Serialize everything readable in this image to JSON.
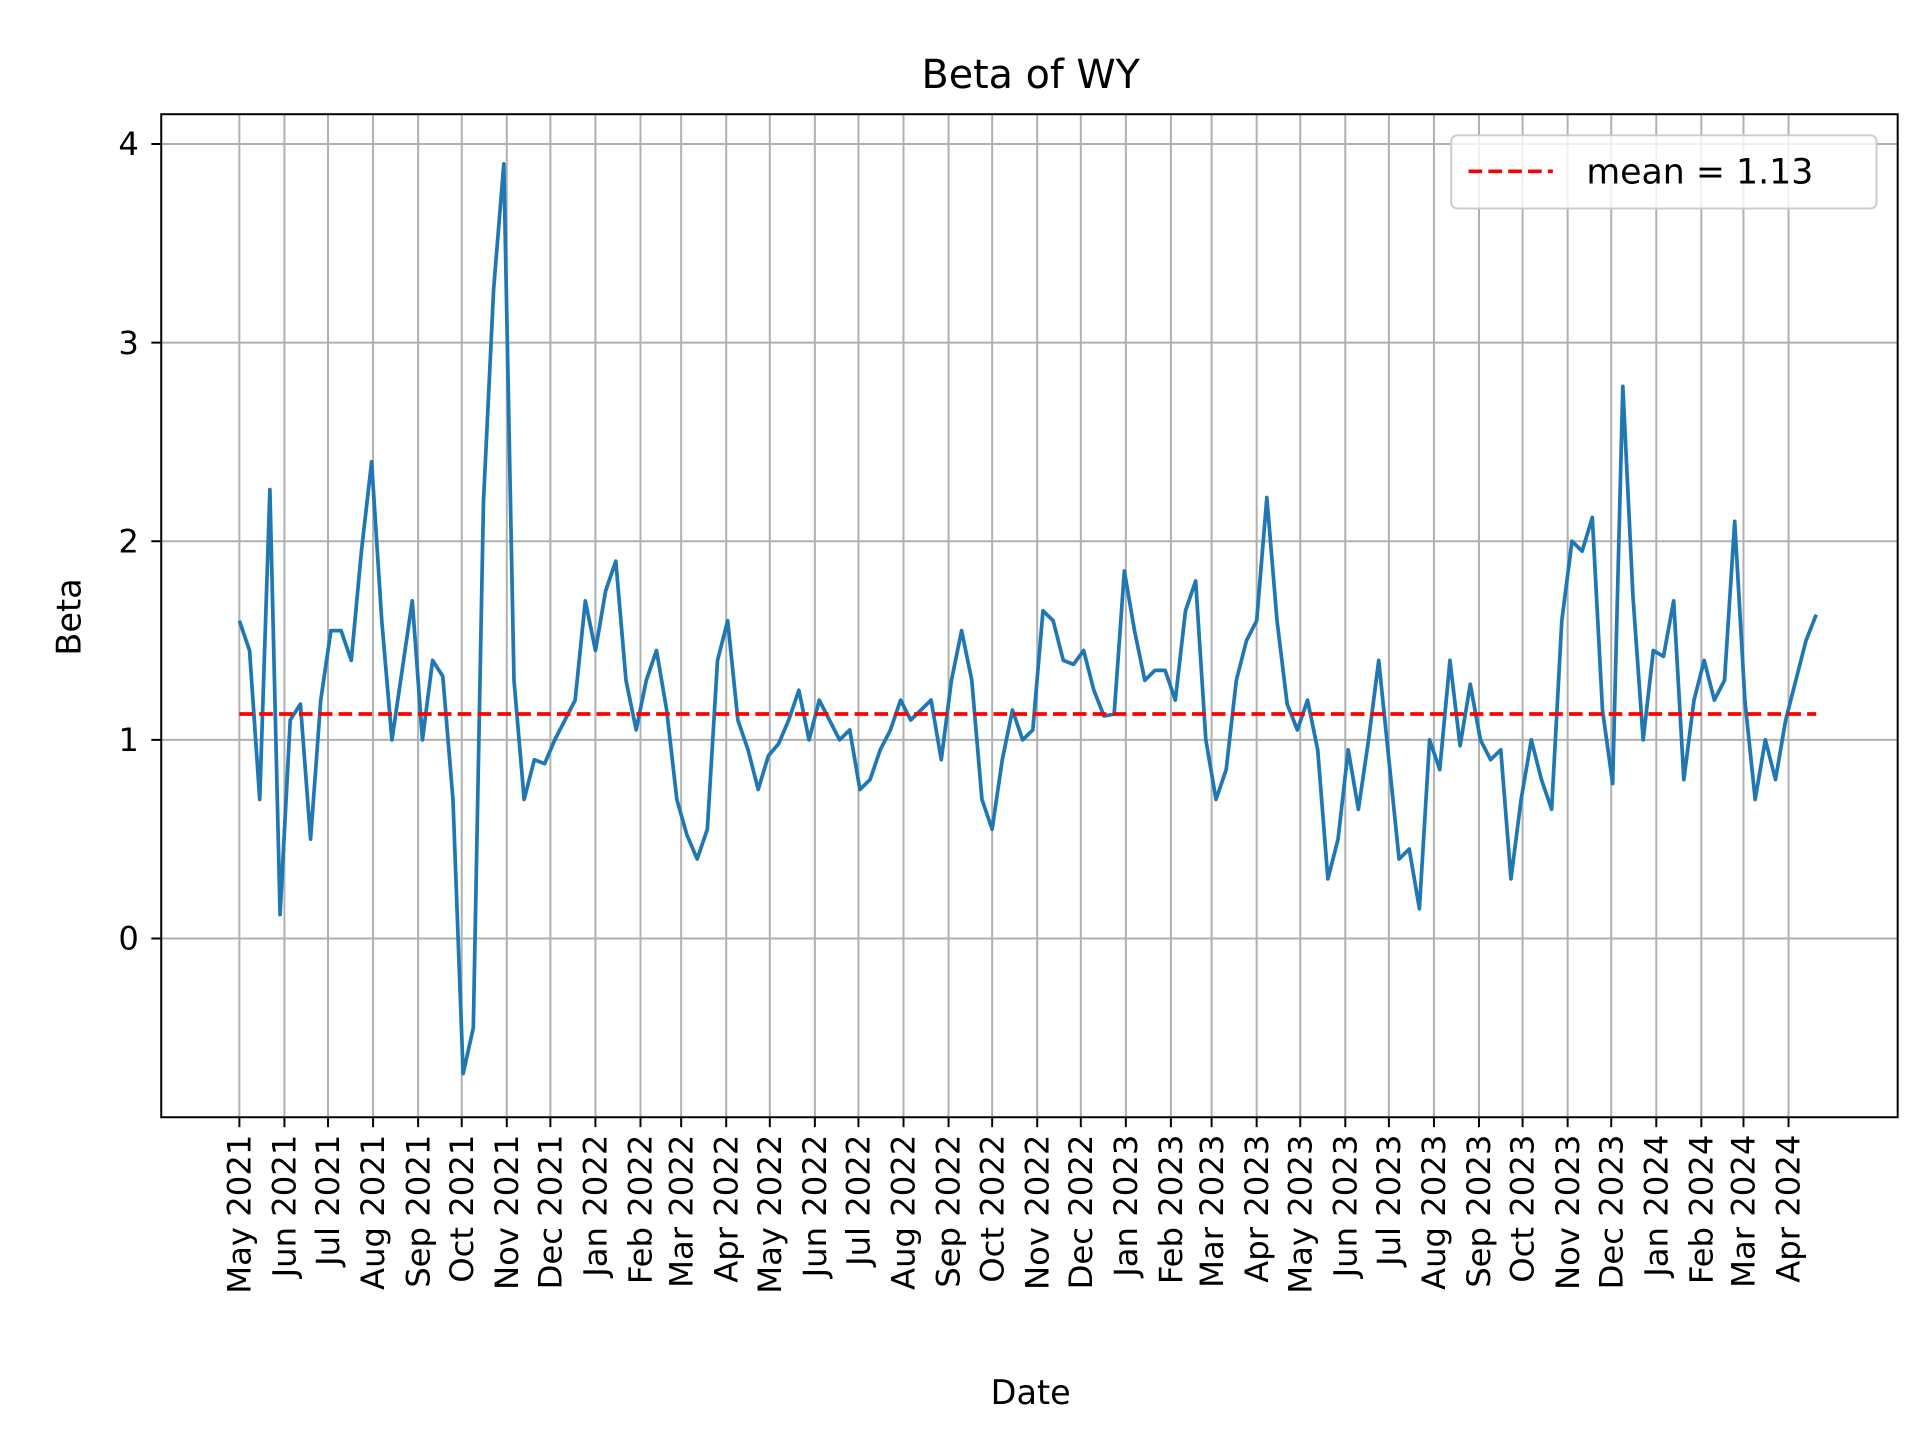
{
  "chart_data": {
    "type": "line",
    "title": "Beta of WY",
    "xlabel": "Date",
    "ylabel": "Beta",
    "ylim": [
      -0.9,
      4.15
    ],
    "yticks": [
      0,
      1,
      2,
      3,
      4
    ],
    "xticks": [
      "May 2021",
      "Jun 2021",
      "Jul 2021",
      "Aug 2021",
      "Sep 2021",
      "Oct 2021",
      "Nov 2021",
      "Dec 2021",
      "Jan 2022",
      "Feb 2022",
      "Mar 2022",
      "Apr 2022",
      "May 2022",
      "Jun 2022",
      "Jul 2022",
      "Aug 2022",
      "Sep 2022",
      "Oct 2022",
      "Nov 2022",
      "Dec 2022",
      "Jan 2023",
      "Feb 2023",
      "Mar 2023",
      "Apr 2023",
      "May 2023",
      "Jun 2023",
      "Jul 2023",
      "Aug 2023",
      "Sep 2023",
      "Oct 2023",
      "Nov 2023",
      "Dec 2023",
      "Jan 2024",
      "Feb 2024",
      "Mar 2024",
      "Apr 2024"
    ],
    "grid": true,
    "legend_position": "top-right",
    "colors": {
      "series": "#1f77b4",
      "mean": "#ff0000",
      "grid": "#b0b0b0"
    },
    "mean": {
      "label": "mean = 1.13",
      "value": 1.13,
      "style": "dashed"
    },
    "x": [
      "2021-05-01",
      "2021-05-08",
      "2021-05-15",
      "2021-05-22",
      "2021-05-29",
      "2021-06-05",
      "2021-06-12",
      "2021-06-19",
      "2021-06-26",
      "2021-07-03",
      "2021-07-10",
      "2021-07-17",
      "2021-07-24",
      "2021-07-31",
      "2021-08-07",
      "2021-08-14",
      "2021-08-21",
      "2021-08-28",
      "2021-09-04",
      "2021-09-11",
      "2021-09-18",
      "2021-09-25",
      "2021-10-02",
      "2021-10-09",
      "2021-10-16",
      "2021-10-23",
      "2021-10-30",
      "2021-11-06",
      "2021-11-13",
      "2021-11-20",
      "2021-11-27",
      "2021-12-04",
      "2021-12-11",
      "2021-12-18",
      "2021-12-25",
      "2022-01-01",
      "2022-01-08",
      "2022-01-15",
      "2022-01-22",
      "2022-01-29",
      "2022-02-05",
      "2022-02-12",
      "2022-02-19",
      "2022-02-26",
      "2022-03-05",
      "2022-03-12",
      "2022-03-19",
      "2022-03-26",
      "2022-04-02",
      "2022-04-09",
      "2022-04-16",
      "2022-04-23",
      "2022-04-30",
      "2022-05-07",
      "2022-05-14",
      "2022-05-21",
      "2022-05-28",
      "2022-06-04",
      "2022-06-11",
      "2022-06-18",
      "2022-06-25",
      "2022-07-02",
      "2022-07-09",
      "2022-07-16",
      "2022-07-23",
      "2022-07-30",
      "2022-08-06",
      "2022-08-13",
      "2022-08-20",
      "2022-08-27",
      "2022-09-03",
      "2022-09-10",
      "2022-09-17",
      "2022-09-24",
      "2022-10-01",
      "2022-10-08",
      "2022-10-15",
      "2022-10-22",
      "2022-10-29",
      "2022-11-05",
      "2022-11-12",
      "2022-11-19",
      "2022-11-26",
      "2022-12-03",
      "2022-12-10",
      "2022-12-17",
      "2022-12-24",
      "2022-12-31",
      "2023-01-07",
      "2023-01-14",
      "2023-01-21",
      "2023-01-28",
      "2023-02-04",
      "2023-02-11",
      "2023-02-18",
      "2023-02-25",
      "2023-03-04",
      "2023-03-11",
      "2023-03-18",
      "2023-03-25",
      "2023-04-01",
      "2023-04-08",
      "2023-04-15",
      "2023-04-22",
      "2023-04-29",
      "2023-05-06",
      "2023-05-13",
      "2023-05-20",
      "2023-05-27",
      "2023-06-03",
      "2023-06-10",
      "2023-06-17",
      "2023-06-24",
      "2023-07-01",
      "2023-07-08",
      "2023-07-15",
      "2023-07-22",
      "2023-07-29",
      "2023-08-05",
      "2023-08-12",
      "2023-08-19",
      "2023-08-26",
      "2023-09-02",
      "2023-09-09",
      "2023-09-16",
      "2023-09-23",
      "2023-09-30",
      "2023-10-07",
      "2023-10-14",
      "2023-10-21",
      "2023-10-28",
      "2023-11-04",
      "2023-11-11",
      "2023-11-18",
      "2023-11-25",
      "2023-12-02",
      "2023-12-09",
      "2023-12-16",
      "2023-12-23",
      "2023-12-30",
      "2024-01-06",
      "2024-01-13",
      "2024-01-20",
      "2024-01-27",
      "2024-02-03",
      "2024-02-10",
      "2024-02-17",
      "2024-02-24",
      "2024-03-02",
      "2024-03-09",
      "2024-03-16",
      "2024-03-23",
      "2024-03-30",
      "2024-04-06",
      "2024-04-13",
      "2024-04-20"
    ],
    "values": [
      1.6,
      1.45,
      0.7,
      2.26,
      0.12,
      1.1,
      1.18,
      0.5,
      1.2,
      1.55,
      1.55,
      1.4,
      1.95,
      2.4,
      1.6,
      1.0,
      1.35,
      1.7,
      1.0,
      1.4,
      1.32,
      0.7,
      -0.68,
      -0.45,
      2.2,
      3.27,
      3.9,
      1.3,
      0.7,
      0.9,
      0.88,
      1.0,
      1.1,
      1.2,
      1.7,
      1.45,
      1.75,
      1.9,
      1.3,
      1.05,
      1.3,
      1.45,
      1.15,
      0.7,
      0.52,
      0.4,
      0.55,
      1.4,
      1.6,
      1.1,
      0.95,
      0.75,
      0.92,
      0.98,
      1.1,
      1.25,
      1.0,
      1.2,
      1.1,
      1.0,
      1.05,
      0.75,
      0.8,
      0.95,
      1.05,
      1.2,
      1.1,
      1.15,
      1.2,
      0.9,
      1.3,
      1.55,
      1.3,
      0.7,
      0.55,
      0.9,
      1.15,
      1.0,
      1.05,
      1.65,
      1.6,
      1.4,
      1.38,
      1.45,
      1.25,
      1.12,
      1.13,
      1.85,
      1.55,
      1.3,
      1.35,
      1.35,
      1.2,
      1.65,
      1.8,
      1.0,
      0.7,
      0.85,
      1.3,
      1.5,
      1.6,
      2.22,
      1.6,
      1.18,
      1.05,
      1.2,
      0.95,
      0.3,
      0.5,
      0.95,
      0.65,
      1.0,
      1.4,
      0.9,
      0.4,
      0.45,
      0.15,
      1.0,
      0.85,
      1.4,
      0.97,
      1.28,
      1.0,
      0.9,
      0.95,
      0.3,
      0.7,
      1.0,
      0.8,
      0.65,
      1.6,
      2.0,
      1.95,
      2.12,
      1.15,
      0.78,
      2.78,
      1.72,
      1.0,
      1.45,
      1.42,
      1.7,
      0.8,
      1.2,
      1.4,
      1.2,
      1.3,
      2.1,
      1.2,
      0.7,
      1.0,
      0.8,
      1.1,
      1.3,
      1.5,
      1.63
    ]
  }
}
